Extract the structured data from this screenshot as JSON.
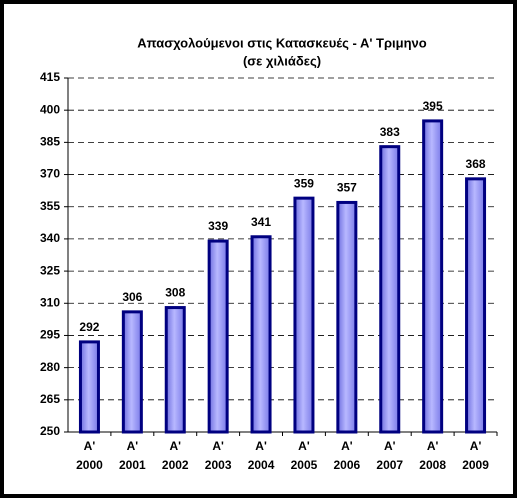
{
  "chart_data": {
    "type": "bar",
    "title": "Απασχολούμενοι στις Κατασκευές - Α' Τριμηνο",
    "subtitle": "(σε χιλιάδες)",
    "categories": [
      "Α' 2000",
      "Α' 2001",
      "Α' 2002",
      "Α' 2003",
      "Α' 2004",
      "Α' 2005",
      "Α' 2006",
      "Α' 2007",
      "Α' 2008",
      "Α' 2009"
    ],
    "values": [
      292,
      306,
      308,
      339,
      341,
      359,
      357,
      383,
      395,
      368
    ],
    "color": "#9a9af5",
    "edge_color": "#000080",
    "ylim": [
      250,
      415
    ],
    "yticks": [
      250,
      265,
      280,
      295,
      310,
      325,
      340,
      355,
      370,
      385,
      400,
      415
    ],
    "grid": true
  }
}
